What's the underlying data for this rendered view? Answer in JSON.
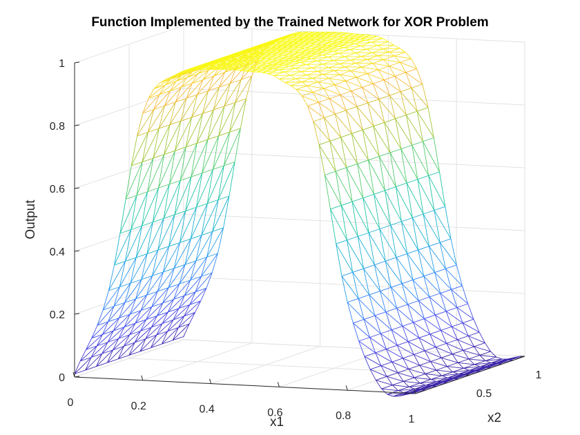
{
  "chart_data": {
    "type": "surface",
    "title": "Function Implemented by the Trained Network for XOR Problem",
    "xlabel": "x1",
    "ylabel": "x2",
    "zlabel": "Output",
    "xlim": [
      0,
      1
    ],
    "ylim": [
      0,
      1
    ],
    "zlim": [
      0,
      1
    ],
    "x_ticks": [
      "0",
      "0.2",
      "0.4",
      "0.6",
      "0.8",
      "1"
    ],
    "y_ticks": [
      "0.5",
      "1"
    ],
    "z_ticks": [
      "0",
      "0.2",
      "0.4",
      "0.6",
      "0.8",
      "1"
    ],
    "grid": true,
    "colormap": "parula",
    "colormap_colors": [
      "#3e26a8",
      "#4746eb",
      "#2f86fa",
      "#1aaadf",
      "#16c1b0",
      "#4ccb6e",
      "#b0c52a",
      "#f5ba3c",
      "#f9fb15"
    ],
    "series": [
      {
        "x": [
          0,
          0.1,
          0.2,
          0.3,
          0.4,
          0.5,
          0.6,
          0.7,
          0.8,
          0.9,
          1.0
        ],
        "z": [
          0.01,
          0.28,
          0.85,
          0.98,
          1.0,
          1.0,
          0.98,
          0.85,
          0.28,
          0.01,
          0.0
        ]
      }
    ]
  }
}
